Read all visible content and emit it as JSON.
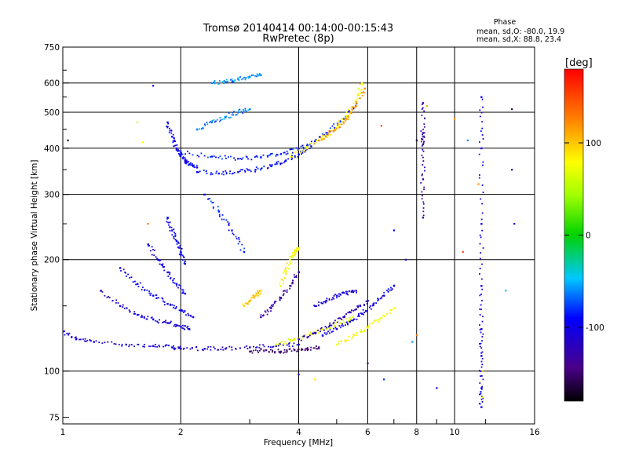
{
  "chart_data": {
    "type": "scatter",
    "title": "Tromsø 20140414 00:14:00-00:15:43",
    "subtitle": "RwPretec (8p)",
    "xlabel": "Frequency [MHz]",
    "ylabel": "Stationary phase Virtual Height [km]",
    "x_scale": "log",
    "y_scale": "log",
    "xlim": [
      1,
      16
    ],
    "ylim": [
      72,
      750
    ],
    "x_ticks": [
      1,
      2,
      4,
      6,
      8,
      10,
      16
    ],
    "x_tick_labels": [
      "1",
      "2",
      "4",
      "6",
      "8",
      "10",
      "16"
    ],
    "y_ticks": [
      75,
      100,
      200,
      300,
      400,
      500,
      600,
      750
    ],
    "y_tick_labels": [
      "75",
      "100",
      "200",
      "300",
      "400",
      "500",
      "600",
      "750"
    ],
    "grid": true,
    "legend": {
      "title": "Phase",
      "line1": "mean, sd,O: -80.0, 19.9",
      "line2": "mean, sd,X: 88.8, 23.4",
      "placement": "top-right"
    },
    "colorbar": {
      "label": "[deg]",
      "range": [
        -180,
        180
      ],
      "ticks": [
        100,
        0,
        -100
      ],
      "tick_labels": [
        "100",
        "0",
        "-100"
      ],
      "colormap": "rainbow"
    },
    "traces": [
      {
        "f": [
          1.0,
          1.08,
          1.2,
          1.45,
          1.7,
          1.9,
          2.0,
          2.3,
          2.6,
          3.0,
          3.5,
          4.0
        ],
        "h": [
          128,
          122,
          120,
          118,
          117,
          116,
          115,
          115,
          115,
          116,
          117,
          118
        ],
        "phase": -110
      },
      {
        "f": [
          1.25,
          1.4,
          1.55,
          1.7,
          1.85,
          2.0,
          2.1
        ],
        "h": [
          165,
          150,
          142,
          138,
          135,
          132,
          130
        ],
        "phase": -105
      },
      {
        "f": [
          1.4,
          1.55,
          1.7,
          1.85,
          2.0,
          2.15
        ],
        "h": [
          190,
          172,
          160,
          152,
          146,
          140
        ],
        "phase": -100
      },
      {
        "f": [
          1.65,
          1.75,
          1.85,
          1.95,
          2.05
        ],
        "h": [
          220,
          200,
          185,
          172,
          162
        ],
        "phase": -100
      },
      {
        "f": [
          1.85,
          1.9,
          1.95,
          2.0,
          2.05
        ],
        "h": [
          260,
          240,
          225,
          210,
          195
        ],
        "phase": -95
      },
      {
        "f": [
          1.85,
          1.9,
          1.95,
          2.0,
          2.05,
          2.1,
          2.2
        ],
        "h": [
          470,
          430,
          400,
          385,
          372,
          362,
          355
        ],
        "phase": -95
      },
      {
        "f": [
          2.2,
          2.5,
          2.8,
          3.1,
          3.4,
          3.7,
          4.0,
          4.3
        ],
        "h": [
          345,
          342,
          345,
          350,
          358,
          370,
          385,
          405
        ],
        "phase": -90
      },
      {
        "f": [
          2.0,
          2.4,
          2.8,
          3.2,
          3.6,
          4.0,
          4.4,
          4.8,
          5.2,
          5.6
        ],
        "h": [
          390,
          380,
          375,
          378,
          386,
          398,
          418,
          445,
          480,
          530
        ],
        "phase": -85
      },
      {
        "f": [
          3.8,
          4.2,
          4.6,
          5.0,
          5.3,
          5.6,
          5.8
        ],
        "h": [
          380,
          400,
          425,
          455,
          490,
          535,
          600
        ],
        "phase": 80
      },
      {
        "f": [
          4.5,
          4.9,
          5.3,
          5.6,
          5.9
        ],
        "h": [
          420,
          445,
          480,
          520,
          580
        ],
        "phase": 120
      },
      {
        "f": [
          2.2,
          2.4,
          2.6,
          2.8,
          3.0
        ],
        "h": [
          450,
          470,
          485,
          500,
          510
        ],
        "phase": -65
      },
      {
        "f": [
          2.3,
          2.5,
          2.7,
          2.9
        ],
        "h": [
          300,
          270,
          240,
          210
        ],
        "phase": -85
      },
      {
        "f": [
          2.4,
          2.6,
          2.8,
          3.0,
          3.2
        ],
        "h": [
          600,
          605,
          615,
          625,
          630
        ],
        "phase": -60
      },
      {
        "f": [
          3.0,
          3.3,
          3.6,
          3.9,
          4.2,
          4.5
        ],
        "h": [
          113,
          114,
          113,
          114,
          115,
          116
        ],
        "phase": -150
      },
      {
        "f": [
          3.5,
          3.9,
          4.3,
          4.7,
          5.1,
          5.5
        ],
        "h": [
          118,
          122,
          126,
          130,
          135,
          140
        ],
        "phase": 70
      },
      {
        "f": [
          4.0,
          4.4,
          4.8,
          5.2,
          5.6,
          6.0
        ],
        "h": [
          122,
          127,
          133,
          140,
          147,
          155
        ],
        "phase": -120
      },
      {
        "f": [
          4.6,
          5.0,
          5.4,
          5.8,
          6.2,
          6.6,
          7.0
        ],
        "h": [
          125,
          130,
          136,
          143,
          151,
          160,
          170
        ],
        "phase": -100
      },
      {
        "f": [
          5.0,
          5.5,
          6.0,
          6.5,
          7.0
        ],
        "h": [
          118,
          124,
          131,
          139,
          148
        ],
        "phase": 75
      },
      {
        "f": [
          3.2,
          3.4,
          3.6,
          3.8,
          4.0
        ],
        "h": [
          140,
          148,
          158,
          170,
          185
        ],
        "phase": -130
      },
      {
        "f": [
          3.6,
          3.7,
          3.8,
          3.9,
          4.0
        ],
        "h": [
          170,
          185,
          200,
          210,
          215
        ],
        "phase": 80
      },
      {
        "f": [
          2.9,
          3.0,
          3.1,
          3.2
        ],
        "h": [
          150,
          155,
          160,
          165
        ],
        "phase": 100
      },
      {
        "f": [
          4.4,
          4.7,
          5.0,
          5.3,
          5.6
        ],
        "h": [
          150,
          155,
          160,
          162,
          165
        ],
        "phase": -110
      },
      {
        "f": [
          11.7,
          11.7,
          11.7,
          11.7,
          11.7,
          11.7,
          11.7,
          11.7
        ],
        "h": [
          80,
          90,
          110,
          130,
          170,
          250,
          400,
          550
        ],
        "phase": -100
      },
      {
        "f": [
          8.3,
          8.3,
          8.3,
          8.3,
          8.3
        ],
        "h": [
          260,
          330,
          410,
          440,
          530
        ],
        "phase": -130
      }
    ],
    "scatter": [
      {
        "f": 1.03,
        "h": 420,
        "phase": -170
      },
      {
        "f": 1.55,
        "h": 470,
        "phase": 60
      },
      {
        "f": 1.6,
        "h": 415,
        "phase": 80
      },
      {
        "f": 1.7,
        "h": 590,
        "phase": -100
      },
      {
        "f": 1.65,
        "h": 250,
        "phase": 130
      },
      {
        "f": 6.5,
        "h": 460,
        "phase": 150
      },
      {
        "f": 7.5,
        "h": 200,
        "phase": -100
      },
      {
        "f": 7.0,
        "h": 240,
        "phase": -90
      },
      {
        "f": 8.0,
        "h": 420,
        "phase": -170
      },
      {
        "f": 8.5,
        "h": 520,
        "phase": 110
      },
      {
        "f": 10.0,
        "h": 480,
        "phase": 120
      },
      {
        "f": 10.5,
        "h": 210,
        "phase": 150
      },
      {
        "f": 10.8,
        "h": 420,
        "phase": -60
      },
      {
        "f": 11.5,
        "h": 320,
        "phase": 120
      },
      {
        "f": 14.0,
        "h": 510,
        "phase": -160
      },
      {
        "f": 14.0,
        "h": 350,
        "phase": -120
      },
      {
        "f": 14.2,
        "h": 250,
        "phase": -110
      },
      {
        "f": 13.5,
        "h": 165,
        "phase": -50
      },
      {
        "f": 6.6,
        "h": 95,
        "phase": -80
      },
      {
        "f": 7.8,
        "h": 120,
        "phase": -60
      },
      {
        "f": 8.0,
        "h": 125,
        "phase": 130
      },
      {
        "f": 4.0,
        "h": 98,
        "phase": -110
      },
      {
        "f": 4.4,
        "h": 95,
        "phase": 90
      },
      {
        "f": 6.0,
        "h": 105,
        "phase": -150
      },
      {
        "f": 9.0,
        "h": 90,
        "phase": -120
      },
      {
        "f": 11.8,
        "h": 85,
        "phase": 80
      },
      {
        "f": 11.8,
        "h": 100,
        "phase": 110
      }
    ]
  }
}
